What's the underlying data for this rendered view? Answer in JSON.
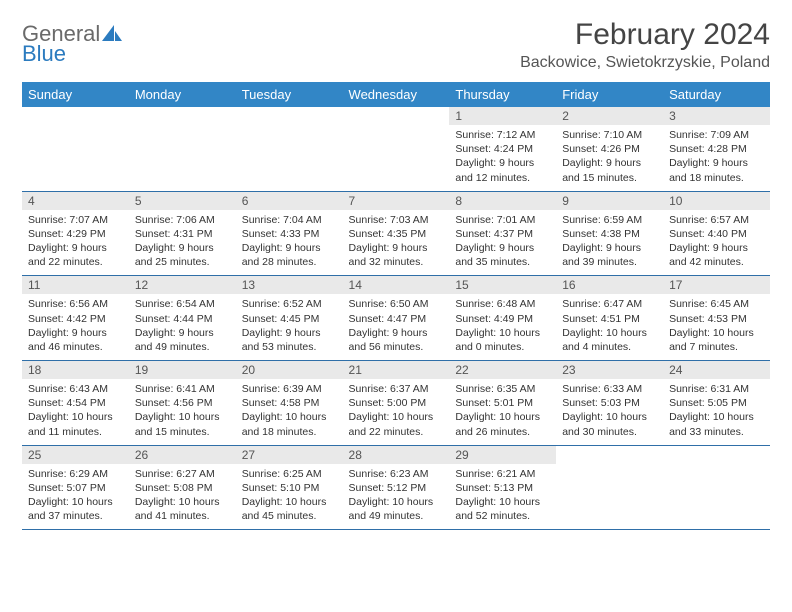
{
  "brand": {
    "part1": "General",
    "part2": "Blue"
  },
  "title": "February 2024",
  "location": "Backowice, Swietokrzyskie, Poland",
  "colors": {
    "header_bg": "#3286c6",
    "header_text": "#ffffff",
    "daynum_bg": "#e9e9e9",
    "border": "#2f6fa8",
    "logo_gray": "#6a6a6a",
    "logo_blue": "#2b7bbf"
  },
  "day_headers": [
    "Sunday",
    "Monday",
    "Tuesday",
    "Wednesday",
    "Thursday",
    "Friday",
    "Saturday"
  ],
  "weeks": [
    {
      "nums": [
        "",
        "",
        "",
        "",
        "1",
        "2",
        "3"
      ],
      "cells": [
        null,
        null,
        null,
        null,
        {
          "sunrise": "Sunrise: 7:12 AM",
          "sunset": "Sunset: 4:24 PM",
          "day1": "Daylight: 9 hours",
          "day2": "and 12 minutes."
        },
        {
          "sunrise": "Sunrise: 7:10 AM",
          "sunset": "Sunset: 4:26 PM",
          "day1": "Daylight: 9 hours",
          "day2": "and 15 minutes."
        },
        {
          "sunrise": "Sunrise: 7:09 AM",
          "sunset": "Sunset: 4:28 PM",
          "day1": "Daylight: 9 hours",
          "day2": "and 18 minutes."
        }
      ]
    },
    {
      "nums": [
        "4",
        "5",
        "6",
        "7",
        "8",
        "9",
        "10"
      ],
      "cells": [
        {
          "sunrise": "Sunrise: 7:07 AM",
          "sunset": "Sunset: 4:29 PM",
          "day1": "Daylight: 9 hours",
          "day2": "and 22 minutes."
        },
        {
          "sunrise": "Sunrise: 7:06 AM",
          "sunset": "Sunset: 4:31 PM",
          "day1": "Daylight: 9 hours",
          "day2": "and 25 minutes."
        },
        {
          "sunrise": "Sunrise: 7:04 AM",
          "sunset": "Sunset: 4:33 PM",
          "day1": "Daylight: 9 hours",
          "day2": "and 28 minutes."
        },
        {
          "sunrise": "Sunrise: 7:03 AM",
          "sunset": "Sunset: 4:35 PM",
          "day1": "Daylight: 9 hours",
          "day2": "and 32 minutes."
        },
        {
          "sunrise": "Sunrise: 7:01 AM",
          "sunset": "Sunset: 4:37 PM",
          "day1": "Daylight: 9 hours",
          "day2": "and 35 minutes."
        },
        {
          "sunrise": "Sunrise: 6:59 AM",
          "sunset": "Sunset: 4:38 PM",
          "day1": "Daylight: 9 hours",
          "day2": "and 39 minutes."
        },
        {
          "sunrise": "Sunrise: 6:57 AM",
          "sunset": "Sunset: 4:40 PM",
          "day1": "Daylight: 9 hours",
          "day2": "and 42 minutes."
        }
      ]
    },
    {
      "nums": [
        "11",
        "12",
        "13",
        "14",
        "15",
        "16",
        "17"
      ],
      "cells": [
        {
          "sunrise": "Sunrise: 6:56 AM",
          "sunset": "Sunset: 4:42 PM",
          "day1": "Daylight: 9 hours",
          "day2": "and 46 minutes."
        },
        {
          "sunrise": "Sunrise: 6:54 AM",
          "sunset": "Sunset: 4:44 PM",
          "day1": "Daylight: 9 hours",
          "day2": "and 49 minutes."
        },
        {
          "sunrise": "Sunrise: 6:52 AM",
          "sunset": "Sunset: 4:45 PM",
          "day1": "Daylight: 9 hours",
          "day2": "and 53 minutes."
        },
        {
          "sunrise": "Sunrise: 6:50 AM",
          "sunset": "Sunset: 4:47 PM",
          "day1": "Daylight: 9 hours",
          "day2": "and 56 minutes."
        },
        {
          "sunrise": "Sunrise: 6:48 AM",
          "sunset": "Sunset: 4:49 PM",
          "day1": "Daylight: 10 hours",
          "day2": "and 0 minutes."
        },
        {
          "sunrise": "Sunrise: 6:47 AM",
          "sunset": "Sunset: 4:51 PM",
          "day1": "Daylight: 10 hours",
          "day2": "and 4 minutes."
        },
        {
          "sunrise": "Sunrise: 6:45 AM",
          "sunset": "Sunset: 4:53 PM",
          "day1": "Daylight: 10 hours",
          "day2": "and 7 minutes."
        }
      ]
    },
    {
      "nums": [
        "18",
        "19",
        "20",
        "21",
        "22",
        "23",
        "24"
      ],
      "cells": [
        {
          "sunrise": "Sunrise: 6:43 AM",
          "sunset": "Sunset: 4:54 PM",
          "day1": "Daylight: 10 hours",
          "day2": "and 11 minutes."
        },
        {
          "sunrise": "Sunrise: 6:41 AM",
          "sunset": "Sunset: 4:56 PM",
          "day1": "Daylight: 10 hours",
          "day2": "and 15 minutes."
        },
        {
          "sunrise": "Sunrise: 6:39 AM",
          "sunset": "Sunset: 4:58 PM",
          "day1": "Daylight: 10 hours",
          "day2": "and 18 minutes."
        },
        {
          "sunrise": "Sunrise: 6:37 AM",
          "sunset": "Sunset: 5:00 PM",
          "day1": "Daylight: 10 hours",
          "day2": "and 22 minutes."
        },
        {
          "sunrise": "Sunrise: 6:35 AM",
          "sunset": "Sunset: 5:01 PM",
          "day1": "Daylight: 10 hours",
          "day2": "and 26 minutes."
        },
        {
          "sunrise": "Sunrise: 6:33 AM",
          "sunset": "Sunset: 5:03 PM",
          "day1": "Daylight: 10 hours",
          "day2": "and 30 minutes."
        },
        {
          "sunrise": "Sunrise: 6:31 AM",
          "sunset": "Sunset: 5:05 PM",
          "day1": "Daylight: 10 hours",
          "day2": "and 33 minutes."
        }
      ]
    },
    {
      "nums": [
        "25",
        "26",
        "27",
        "28",
        "29",
        "",
        ""
      ],
      "cells": [
        {
          "sunrise": "Sunrise: 6:29 AM",
          "sunset": "Sunset: 5:07 PM",
          "day1": "Daylight: 10 hours",
          "day2": "and 37 minutes."
        },
        {
          "sunrise": "Sunrise: 6:27 AM",
          "sunset": "Sunset: 5:08 PM",
          "day1": "Daylight: 10 hours",
          "day2": "and 41 minutes."
        },
        {
          "sunrise": "Sunrise: 6:25 AM",
          "sunset": "Sunset: 5:10 PM",
          "day1": "Daylight: 10 hours",
          "day2": "and 45 minutes."
        },
        {
          "sunrise": "Sunrise: 6:23 AM",
          "sunset": "Sunset: 5:12 PM",
          "day1": "Daylight: 10 hours",
          "day2": "and 49 minutes."
        },
        {
          "sunrise": "Sunrise: 6:21 AM",
          "sunset": "Sunset: 5:13 PM",
          "day1": "Daylight: 10 hours",
          "day2": "and 52 minutes."
        },
        null,
        null
      ]
    }
  ]
}
